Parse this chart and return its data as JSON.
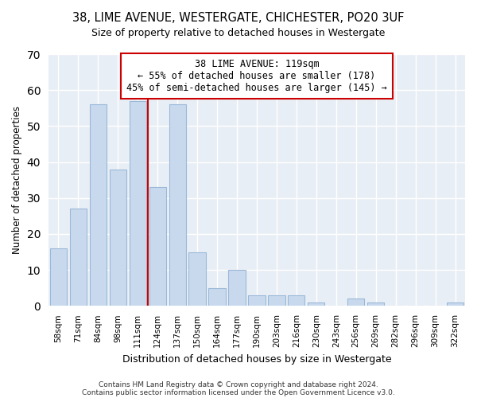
{
  "title": "38, LIME AVENUE, WESTERGATE, CHICHESTER, PO20 3UF",
  "subtitle": "Size of property relative to detached houses in Westergate",
  "xlabel": "Distribution of detached houses by size in Westergate",
  "ylabel": "Number of detached properties",
  "bar_labels": [
    "58sqm",
    "71sqm",
    "84sqm",
    "98sqm",
    "111sqm",
    "124sqm",
    "137sqm",
    "150sqm",
    "164sqm",
    "177sqm",
    "190sqm",
    "203sqm",
    "216sqm",
    "230sqm",
    "243sqm",
    "256sqm",
    "269sqm",
    "282sqm",
    "296sqm",
    "309sqm",
    "322sqm"
  ],
  "bar_values": [
    16,
    27,
    56,
    38,
    57,
    33,
    56,
    15,
    5,
    10,
    3,
    3,
    3,
    1,
    0,
    2,
    1,
    0,
    0,
    0,
    1
  ],
  "bar_color": "#c8d9ee",
  "bar_edge_color": "#9ab8d8",
  "vline_x": 4.5,
  "vline_color": "#cc0000",
  "annotation_title": "38 LIME AVENUE: 119sqm",
  "annotation_line1": "← 55% of detached houses are smaller (178)",
  "annotation_line2": "45% of semi-detached houses are larger (145) →",
  "annotation_box_color": "#ffffff",
  "annotation_box_edge": "#cc0000",
  "ylim": [
    0,
    70
  ],
  "yticks": [
    0,
    10,
    20,
    30,
    40,
    50,
    60,
    70
  ],
  "bg_color": "#e8eef5",
  "footer1": "Contains HM Land Registry data © Crown copyright and database right 2024.",
  "footer2": "Contains public sector information licensed under the Open Government Licence v3.0."
}
